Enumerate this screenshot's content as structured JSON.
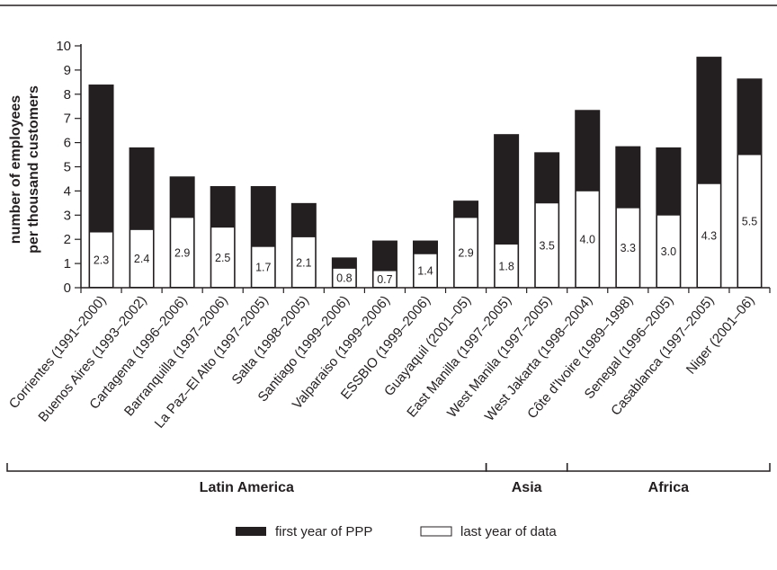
{
  "chart_data": {
    "type": "bar",
    "stacked": "overlay",
    "ylabel": [
      "number of employees",
      "per thousand customers"
    ],
    "ylim": [
      0,
      10
    ],
    "yticks": [
      "0",
      "1",
      "2",
      "3",
      "4",
      "5",
      "6",
      "7",
      "8",
      "9",
      "10"
    ],
    "categories": [
      "Corrientes (1991–2000)",
      "Buenos Aires (1993–2002)",
      "Cartagena (1996–2006)",
      "Barranquilla (1997–2006)",
      "La Paz–El Alto (1997–2005)",
      "Salta (1998–2005)",
      "Santiago (1999–2006)",
      "Valparaiso (1999–2006)",
      "ESSBIO (1999–2006)",
      "Guayaquil (2001–05)",
      "East Manilla (1997–2005)",
      "West Manila (1997–2005)",
      "West Jakarta (1998–2004)",
      "Côte d'Ivoire (1989–1998)",
      "Senegal (1996–2005)",
      "Casablanca (1997–2005)",
      "Niger (2001–06)"
    ],
    "series": [
      {
        "name": "first year of PPP",
        "color": "#231f20",
        "values": [
          8.4,
          5.8,
          4.6,
          4.2,
          4.2,
          3.5,
          1.25,
          1.95,
          1.95,
          3.6,
          6.35,
          5.6,
          7.35,
          5.85,
          5.8,
          9.55,
          8.65
        ]
      },
      {
        "name": "last year of data",
        "color": "#ffffff",
        "values": [
          2.3,
          2.4,
          2.9,
          2.5,
          1.7,
          2.1,
          0.8,
          0.7,
          1.4,
          2.9,
          1.8,
          3.5,
          4.0,
          3.3,
          3.0,
          4.3,
          5.5
        ],
        "labels": [
          "2.3",
          "2.4",
          "2.9",
          "2.5",
          "1.7",
          "2.1",
          "0.8",
          "0.7",
          "1.4",
          "2.9",
          "1.8",
          "3.5",
          "4.0",
          "3.3",
          "3.0",
          "4.3",
          "5.5"
        ]
      }
    ],
    "groups": [
      {
        "name": "Latin America",
        "start": 0,
        "end": 9
      },
      {
        "name": "Asia",
        "start": 10,
        "end": 11
      },
      {
        "name": "Africa",
        "start": 12,
        "end": 16
      }
    ],
    "group_labels": [
      "Latin America",
      "Asia",
      "Africa"
    ],
    "legend": {
      "placement": "bottom-center",
      "items": [
        "first year of PPP",
        "last year of data"
      ]
    },
    "grid": false
  }
}
